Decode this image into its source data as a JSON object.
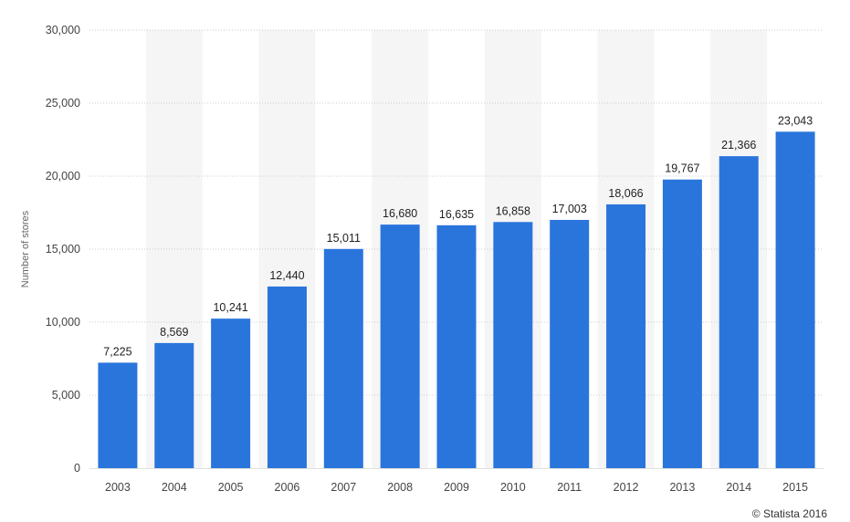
{
  "chart_data": {
    "type": "bar",
    "categories": [
      "2003",
      "2004",
      "2005",
      "2006",
      "2007",
      "2008",
      "2009",
      "2010",
      "2011",
      "2012",
      "2013",
      "2014",
      "2015"
    ],
    "values": [
      7225,
      8569,
      10241,
      12440,
      15011,
      16680,
      16635,
      16858,
      17003,
      18066,
      19767,
      21366,
      23043
    ],
    "value_labels": [
      "7,225",
      "8,569",
      "10,241",
      "12,440",
      "15,011",
      "16,680",
      "16,635",
      "16,858",
      "17,003",
      "18,066",
      "19,767",
      "21,366",
      "23,043"
    ],
    "ylabel": "Number of stores",
    "xlabel": "",
    "ylim": [
      0,
      30000
    ],
    "yticks": [
      0,
      5000,
      10000,
      15000,
      20000,
      25000,
      30000
    ],
    "ytick_labels": [
      "0",
      "5,000",
      "10,000",
      "15,000",
      "20,000",
      "25,000",
      "30,000"
    ],
    "grid": true,
    "alternating_column_shading": true,
    "bar_color": "#2a75dc",
    "shade_color": "#f5f5f5",
    "grid_color": "#cccccc"
  },
  "credit": "© Statista 2016"
}
